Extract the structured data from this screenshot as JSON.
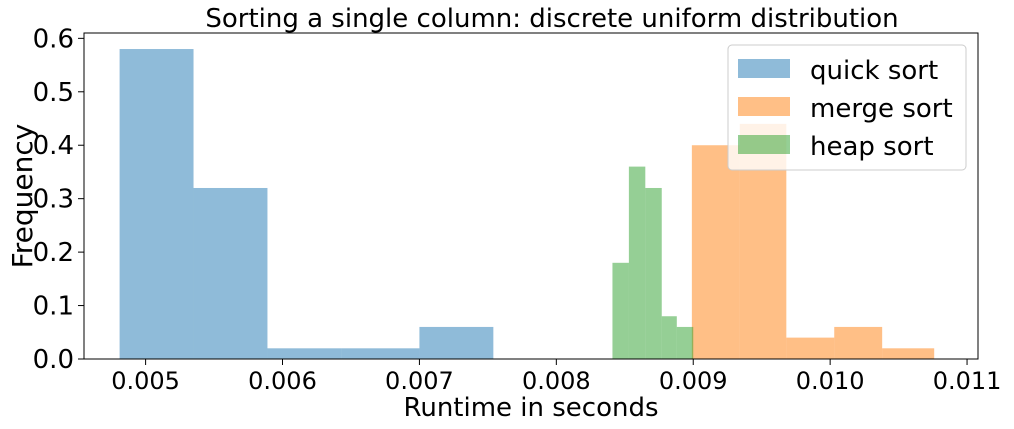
{
  "chart_data": {
    "type": "histogram",
    "title": "Sorting a single column: discrete uniform distribution",
    "xlabel": "Runtime in seconds",
    "ylabel": "Frequency",
    "xlim": [
      0.00455,
      0.01108
    ],
    "ylim": [
      0,
      0.61
    ],
    "xticks": [
      {
        "value": 0.005,
        "label": "0.005"
      },
      {
        "value": 0.006,
        "label": "0.006"
      },
      {
        "value": 0.007,
        "label": "0.007"
      },
      {
        "value": 0.008,
        "label": "0.008"
      },
      {
        "value": 0.009,
        "label": "0.009"
      },
      {
        "value": 0.01,
        "label": "0.010"
      },
      {
        "value": 0.011,
        "label": "0.011"
      }
    ],
    "yticks": [
      {
        "value": 0.0,
        "label": "0.0"
      },
      {
        "value": 0.1,
        "label": "0.1"
      },
      {
        "value": 0.2,
        "label": "0.2"
      },
      {
        "value": 0.3,
        "label": "0.3"
      },
      {
        "value": 0.4,
        "label": "0.4"
      },
      {
        "value": 0.5,
        "label": "0.5"
      },
      {
        "value": 0.6,
        "label": "0.6"
      }
    ],
    "legend_position": "top-right",
    "series": [
      {
        "name": "quick sort",
        "color": "#1f77b4",
        "bins": [
          {
            "x0": 0.00481,
            "x1": 0.00535,
            "y": 0.58
          },
          {
            "x0": 0.00535,
            "x1": 0.00589,
            "y": 0.32
          },
          {
            "x0": 0.00589,
            "x1": 0.00643,
            "y": 0.02
          },
          {
            "x0": 0.00643,
            "x1": 0.007,
            "y": 0.02
          },
          {
            "x0": 0.007,
            "x1": 0.00754,
            "y": 0.06
          }
        ]
      },
      {
        "name": "merge sort",
        "color": "#ff7f0e",
        "bins": [
          {
            "x0": 0.00899,
            "x1": 0.00934,
            "y": 0.4
          },
          {
            "x0": 0.00934,
            "x1": 0.00968,
            "y": 0.44
          },
          {
            "x0": 0.00968,
            "x1": 0.01003,
            "y": 0.04
          },
          {
            "x0": 0.01003,
            "x1": 0.01038,
            "y": 0.06
          },
          {
            "x0": 0.01038,
            "x1": 0.01076,
            "y": 0.02
          }
        ]
      },
      {
        "name": "heap sort",
        "color": "#2ca02c",
        "bins": [
          {
            "x0": 0.00841,
            "x1": 0.00853,
            "y": 0.18
          },
          {
            "x0": 0.00853,
            "x1": 0.00865,
            "y": 0.36
          },
          {
            "x0": 0.00865,
            "x1": 0.00877,
            "y": 0.32
          },
          {
            "x0": 0.00877,
            "x1": 0.00888,
            "y": 0.08
          },
          {
            "x0": 0.00888,
            "x1": 0.009,
            "y": 0.06
          }
        ]
      }
    ]
  }
}
